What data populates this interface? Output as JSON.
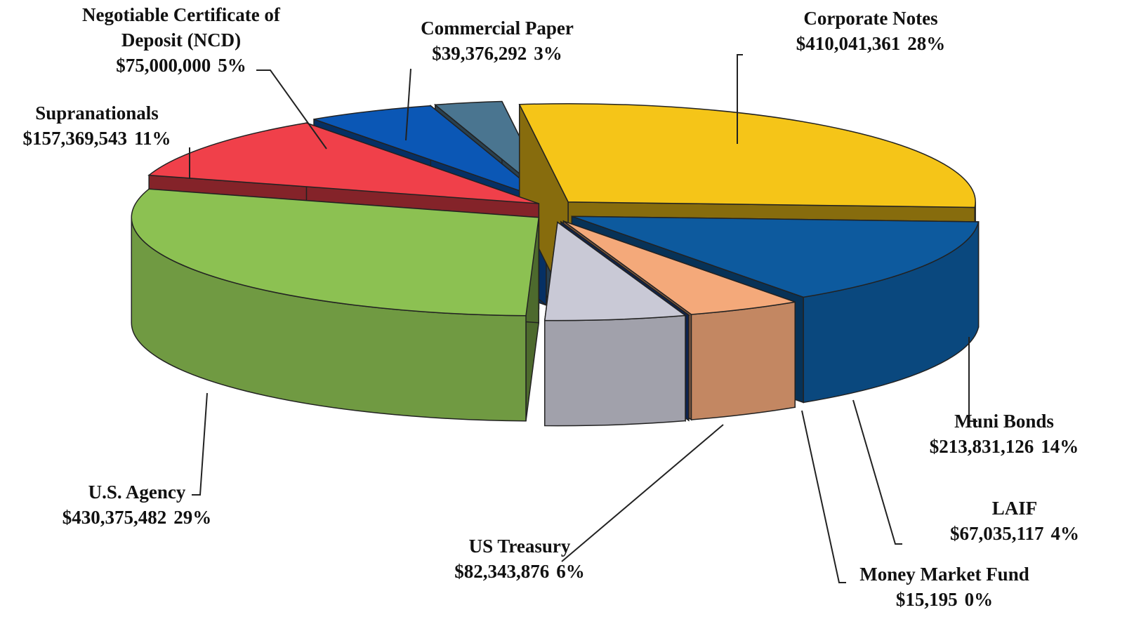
{
  "chart_data": {
    "type": "pie",
    "categories": [
      "Corporate Notes",
      "Muni Bonds",
      "LAIF",
      "Money Market Fund",
      "US Treasury",
      "U.S. Agency",
      "Supranationals",
      "Negotiable Certificate of Deposit (NCD)",
      "Commercial Paper"
    ],
    "values": [
      410041361,
      213831126,
      67035117,
      15195,
      82343876,
      430375482,
      157369543,
      75000000,
      39376292
    ],
    "value_labels": [
      "$410,041,361",
      "$213,831,126",
      "$67,035,117",
      "$15,195",
      "$82,343,876",
      "$430,375,482",
      "$157,369,543",
      "$75,000,000",
      "$39,376,292"
    ],
    "percents": [
      28,
      14,
      4,
      0,
      6,
      29,
      11,
      5,
      3
    ],
    "percent_labels": [
      "28%",
      "14%",
      "4%",
      "0%",
      "6%",
      "29%",
      "11%",
      "5%",
      "3%"
    ],
    "colors": [
      "#f5c518",
      "#0d5a9e",
      "#f4a97a",
      "#1a3f8f",
      "#c9c9d6",
      "#8cc152",
      "#f0404a",
      "#0b57b5",
      "#4a7590"
    ]
  }
}
